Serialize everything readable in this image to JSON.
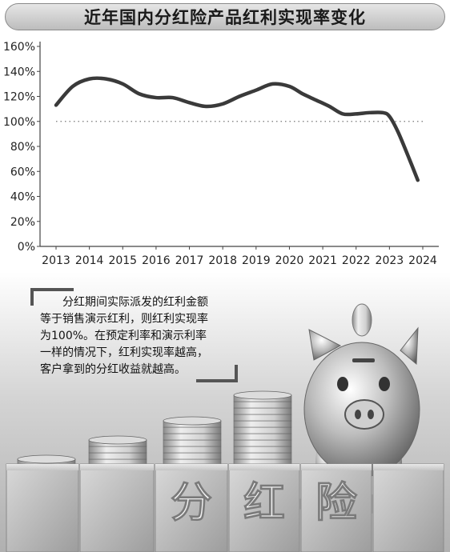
{
  "title": "近年国内分红险产品红利实现率变化",
  "chart_data": {
    "type": "line",
    "title": "",
    "xlabel": "",
    "ylabel": "",
    "x_ticks": [
      "2013",
      "2014",
      "2015",
      "2016",
      "2017",
      "2018",
      "2019",
      "2020",
      "2021",
      "2022",
      "2023",
      "2024"
    ],
    "y_ticks": [
      "0%",
      "20%",
      "40%",
      "60%",
      "80%",
      "100%",
      "120%",
      "140%",
      "160%"
    ],
    "ylim": [
      0,
      160
    ],
    "reference_line": 100,
    "grid": false,
    "series": [
      {
        "x": [
          2013.0,
          2013.5,
          2014.0,
          2014.5,
          2015.0,
          2015.5,
          2016.0,
          2016.5,
          2017.0,
          2017.5,
          2018.0,
          2018.5,
          2019.0,
          2019.5,
          2020.0,
          2020.4,
          2020.8,
          2021.2,
          2021.6,
          2022.0,
          2022.4,
          2022.8,
          2023.0,
          2023.25,
          2023.55,
          2023.85
        ],
        "values": [
          113,
          128,
          134,
          134,
          130,
          122,
          119,
          119,
          115,
          112,
          114,
          120,
          125,
          130,
          128,
          122,
          117,
          112,
          106,
          106,
          107,
          107,
          104,
          92,
          73,
          53
        ]
      }
    ]
  },
  "caption": {
    "lines": [
      "分红期间实际派发的红利金额",
      "等于销售演示红利，则红利实现率",
      "为100%。在预定利率和演示利率",
      "一样的情况下，红利实现率越高，",
      "客户拿到的分红收益就越高。"
    ]
  },
  "blocks": {
    "labels": [
      "分",
      "红",
      "险"
    ]
  }
}
